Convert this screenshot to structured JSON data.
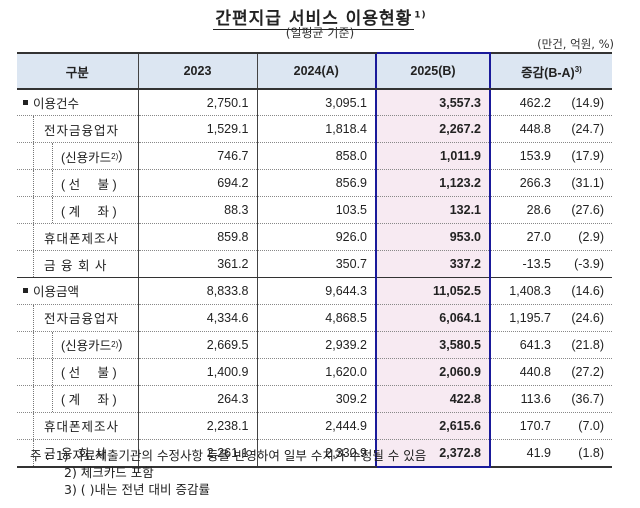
{
  "title": "간편지급 서비스 이용현황",
  "title_footnote": "1)",
  "subtitle": "(일평균 기준)",
  "unit": "(만건, 억원, %)",
  "columns": [
    "구분",
    "2023",
    "2024(A)",
    "2025(B)",
    "증감(B-A)"
  ],
  "columns_footnote": "3)",
  "highlight_color": "#f7eaf2",
  "highlight_border": "#1a1a9a",
  "header_bg": "#dce6f2",
  "rows": [
    {
      "label": "이용건수",
      "level": 0,
      "y2023": "2,750.1",
      "y2024": "3,095.1",
      "y2025": "3,557.3",
      "diff": "462.2",
      "pct": "(14.9)"
    },
    {
      "label": "전자금융업자",
      "level": 1,
      "y2023": "1,529.1",
      "y2024": "1,818.4",
      "y2025": "2,267.2",
      "diff": "448.8",
      "pct": "(24.7)"
    },
    {
      "label": "(신용카드",
      "footnote": "2)",
      "label_end": ")",
      "level": 2,
      "y2023": "746.7",
      "y2024": "858.0",
      "y2025": "1,011.9",
      "diff": "153.9",
      "pct": "(17.9)"
    },
    {
      "label": "( 선     불 )",
      "level": 2,
      "y2023": "694.2",
      "y2024": "856.9",
      "y2025": "1,123.2",
      "diff": "266.3",
      "pct": "(31.1)"
    },
    {
      "label": "( 계     좌 )",
      "level": 2,
      "y2023": "88.3",
      "y2024": "103.5",
      "y2025": "132.1",
      "diff": "28.6",
      "pct": "(27.6)"
    },
    {
      "label": "휴대폰제조사",
      "level": 1,
      "y2023": "859.8",
      "y2024": "926.0",
      "y2025": "953.0",
      "diff": "27.0",
      "pct": "(2.9)"
    },
    {
      "label": "금 융 회 사",
      "level": 1,
      "y2023": "361.2",
      "y2024": "350.7",
      "y2025": "337.2",
      "diff": "-13.5",
      "pct": "(-3.9)"
    },
    {
      "label": "이용금액",
      "level": 0,
      "y2023": "8,833.8",
      "y2024": "9,644.3",
      "y2025": "11,052.5",
      "diff": "1,408.3",
      "pct": "(14.6)"
    },
    {
      "label": "전자금융업자",
      "level": 1,
      "y2023": "4,334.6",
      "y2024": "4,868.5",
      "y2025": "6,064.1",
      "diff": "1,195.7",
      "pct": "(24.6)"
    },
    {
      "label": "(신용카드",
      "footnote": "2)",
      "label_end": ")",
      "level": 2,
      "y2023": "2,669.5",
      "y2024": "2,939.2",
      "y2025": "3,580.5",
      "diff": "641.3",
      "pct": "(21.8)"
    },
    {
      "label": "( 선     불 )",
      "level": 2,
      "y2023": "1,400.9",
      "y2024": "1,620.0",
      "y2025": "2,060.9",
      "diff": "440.8",
      "pct": "(27.2)"
    },
    {
      "label": "( 계     좌 )",
      "level": 2,
      "y2023": "264.3",
      "y2024": "309.2",
      "y2025": "422.8",
      "diff": "113.6",
      "pct": "(36.7)"
    },
    {
      "label": "휴대폰제조사",
      "level": 1,
      "y2023": "2,238.1",
      "y2024": "2,444.9",
      "y2025": "2,615.6",
      "diff": "170.7",
      "pct": "(7.0)"
    },
    {
      "label": "금 융 회 사",
      "level": 1,
      "y2023": "2,261.1",
      "y2024": "2,330.9",
      "y2025": "2,372.8",
      "diff": "41.9",
      "pct": "(1.8)"
    }
  ],
  "notes": {
    "prefix": "주 :",
    "items": [
      "1) 자료제출기관의 수정사항 등을 반영하여 일부 수치가 수정될 수 있음",
      "2) 체크카드 포함",
      "3) (   )내는 전년 대비 증감률"
    ]
  }
}
